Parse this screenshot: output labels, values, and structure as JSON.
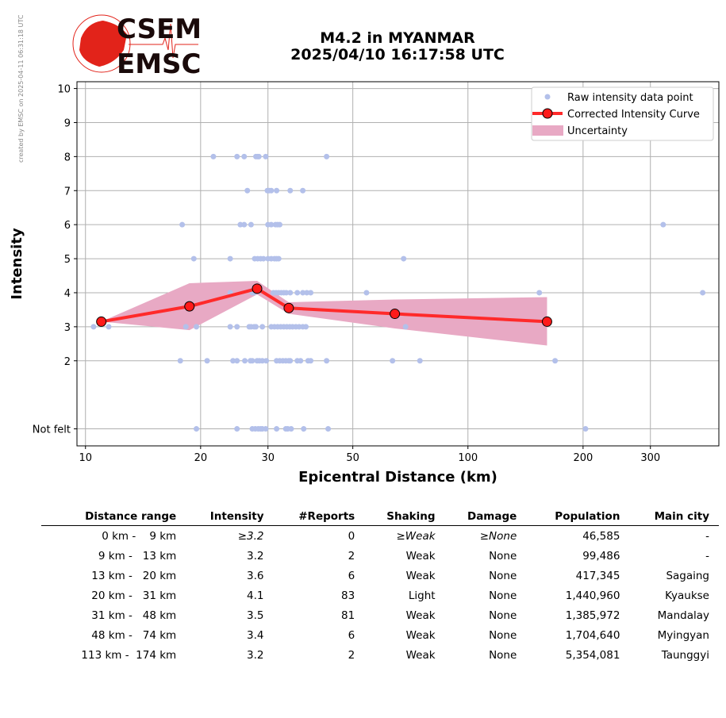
{
  "credit": "created by EMSC on 2025-04-11 06:31:18 UTC",
  "logo": {
    "line1": "CSEM",
    "line2": "EMSC"
  },
  "title": {
    "line1": "M4.2 in MYANMAR",
    "line2": "2025/04/10 16:17:58 UTC"
  },
  "colors": {
    "raw": "#b3c0ea",
    "curve": "#ff2a2a",
    "band": "#e8a9c4",
    "logo": "#e2231a"
  },
  "chart_data": {
    "type": "scatter",
    "xlabel": "Epicentral Distance (km)",
    "ylabel": "Intensity",
    "xscale": "log",
    "xlim": [
      9.5,
      453
    ],
    "ylim": [
      -0.5,
      10.2
    ],
    "grid": true,
    "legend": "top-right",
    "xticks": [
      10,
      20,
      30,
      50,
      100,
      200,
      300
    ],
    "yticks": [
      {
        "v": 0,
        "label": "Not felt"
      },
      {
        "v": 2,
        "label": "2"
      },
      {
        "v": 3,
        "label": "3"
      },
      {
        "v": 4,
        "label": "4"
      },
      {
        "v": 5,
        "label": "5"
      },
      {
        "v": 6,
        "label": "6"
      },
      {
        "v": 7,
        "label": "7"
      },
      {
        "v": 8,
        "label": "8"
      },
      {
        "v": 9,
        "label": "9"
      },
      {
        "v": 10,
        "label": "10"
      }
    ],
    "legend_entries": [
      "Raw intensity data point",
      "Corrected Intensity Curve",
      "Uncertainty"
    ],
    "raw_points": [
      [
        21.6,
        8
      ],
      [
        24.9,
        8
      ],
      [
        26,
        8
      ],
      [
        27.9,
        8
      ],
      [
        28.2,
        8
      ],
      [
        28.4,
        8
      ],
      [
        29.6,
        8
      ],
      [
        42.7,
        8
      ],
      [
        26.5,
        7
      ],
      [
        29.9,
        7
      ],
      [
        30.2,
        7
      ],
      [
        30.6,
        7
      ],
      [
        31.6,
        7
      ],
      [
        34.3,
        7
      ],
      [
        37,
        7
      ],
      [
        17.9,
        6
      ],
      [
        25.4,
        6
      ],
      [
        26,
        6
      ],
      [
        27.1,
        6
      ],
      [
        30,
        6
      ],
      [
        30.6,
        6
      ],
      [
        31.4,
        6
      ],
      [
        31.8,
        6
      ],
      [
        32.2,
        6
      ],
      [
        324,
        6
      ],
      [
        19.2,
        5
      ],
      [
        23.9,
        5
      ],
      [
        27.7,
        5
      ],
      [
        28.2,
        5
      ],
      [
        28.7,
        5
      ],
      [
        29.2,
        5
      ],
      [
        30,
        5
      ],
      [
        30.6,
        5
      ],
      [
        31.2,
        5
      ],
      [
        31.6,
        5
      ],
      [
        32,
        5
      ],
      [
        67.9,
        5
      ],
      [
        23.9,
        4
      ],
      [
        27.3,
        4
      ],
      [
        27.6,
        4
      ],
      [
        31,
        4
      ],
      [
        31.5,
        4
      ],
      [
        32,
        4
      ],
      [
        32.5,
        4
      ],
      [
        33,
        4
      ],
      [
        33.5,
        4
      ],
      [
        34.3,
        4
      ],
      [
        35.8,
        4
      ],
      [
        37,
        4
      ],
      [
        37.9,
        4
      ],
      [
        38.8,
        4
      ],
      [
        54.3,
        4
      ],
      [
        153.7,
        4
      ],
      [
        411,
        4
      ],
      [
        10.5,
        3
      ],
      [
        11.5,
        3
      ],
      [
        18.3,
        3
      ],
      [
        19.5,
        3
      ],
      [
        23.9,
        3
      ],
      [
        24.9,
        3
      ],
      [
        26.8,
        3
      ],
      [
        27.1,
        3
      ],
      [
        27.6,
        3
      ],
      [
        27.9,
        3
      ],
      [
        29,
        3
      ],
      [
        30.6,
        3
      ],
      [
        31.2,
        3
      ],
      [
        31.8,
        3
      ],
      [
        32.4,
        3
      ],
      [
        33,
        3
      ],
      [
        33.6,
        3
      ],
      [
        34.2,
        3
      ],
      [
        34.8,
        3
      ],
      [
        35.5,
        3
      ],
      [
        36.2,
        3
      ],
      [
        37,
        3
      ],
      [
        37.7,
        3
      ],
      [
        68.7,
        3
      ],
      [
        17.7,
        2
      ],
      [
        20.8,
        2
      ],
      [
        24.3,
        2
      ],
      [
        24.9,
        2
      ],
      [
        26.1,
        2
      ],
      [
        27,
        2
      ],
      [
        27.3,
        2
      ],
      [
        28.1,
        2
      ],
      [
        28.5,
        2
      ],
      [
        29,
        2
      ],
      [
        29.7,
        2
      ],
      [
        31.6,
        2
      ],
      [
        32.2,
        2
      ],
      [
        32.8,
        2
      ],
      [
        33.4,
        2
      ],
      [
        34,
        2
      ],
      [
        34.3,
        2
      ],
      [
        35.8,
        2
      ],
      [
        36.5,
        2
      ],
      [
        38.2,
        2
      ],
      [
        38.8,
        2
      ],
      [
        42.7,
        2
      ],
      [
        63.5,
        2
      ],
      [
        74.9,
        2
      ],
      [
        169,
        2
      ],
      [
        19.5,
        0
      ],
      [
        24.9,
        0
      ],
      [
        27.3,
        0
      ],
      [
        27.8,
        0
      ],
      [
        28.3,
        0
      ],
      [
        28.7,
        0
      ],
      [
        29,
        0
      ],
      [
        29.6,
        0
      ],
      [
        31.6,
        0
      ],
      [
        33.4,
        0
      ],
      [
        33.8,
        0
      ],
      [
        34.5,
        0
      ],
      [
        37.2,
        0
      ],
      [
        43.1,
        0
      ],
      [
        203,
        0
      ]
    ],
    "curve": [
      [
        11.0,
        3.15
      ],
      [
        18.7,
        3.6
      ],
      [
        28.1,
        4.12
      ],
      [
        34.0,
        3.55
      ],
      [
        64.4,
        3.38
      ],
      [
        161,
        3.15
      ]
    ],
    "band_upper": [
      [
        11.0,
        3.15
      ],
      [
        18.7,
        4.28
      ],
      [
        28.1,
        4.35
      ],
      [
        34.0,
        3.72
      ],
      [
        64.4,
        3.8
      ],
      [
        161,
        3.87
      ]
    ],
    "band_lower": [
      [
        11.0,
        3.15
      ],
      [
        18.7,
        2.9
      ],
      [
        28.1,
        3.95
      ],
      [
        34.0,
        3.38
      ],
      [
        64.4,
        2.95
      ],
      [
        161,
        2.45
      ]
    ]
  },
  "table": {
    "headers": [
      "Distance range",
      "Intensity",
      "#Reports",
      "Shaking",
      "Damage",
      "Population",
      "Main city"
    ],
    "rows": [
      [
        "0 km -    9 km",
        "≥3.2",
        "0",
        "≥Weak",
        "≥None",
        "46,585",
        "-"
      ],
      [
        "9 km -   13 km",
        "3.2",
        "2",
        "Weak",
        "None",
        "99,486",
        "-"
      ],
      [
        "13 km -   20 km",
        "3.6",
        "6",
        "Weak",
        "None",
        "417,345",
        "Sagaing"
      ],
      [
        "20 km -   31 km",
        "4.1",
        "83",
        "Light",
        "None",
        "1,440,960",
        "Kyaukse"
      ],
      [
        "31 km -   48 km",
        "3.5",
        "81",
        "Weak",
        "None",
        "1,385,972",
        "Mandalay"
      ],
      [
        "48 km -   74 km",
        "3.4",
        "6",
        "Weak",
        "None",
        "1,704,640",
        "Myingyan"
      ],
      [
        "113 km -  174 km",
        "3.2",
        "2",
        "Weak",
        "None",
        "5,354,081",
        "Taunggyi"
      ]
    ]
  }
}
